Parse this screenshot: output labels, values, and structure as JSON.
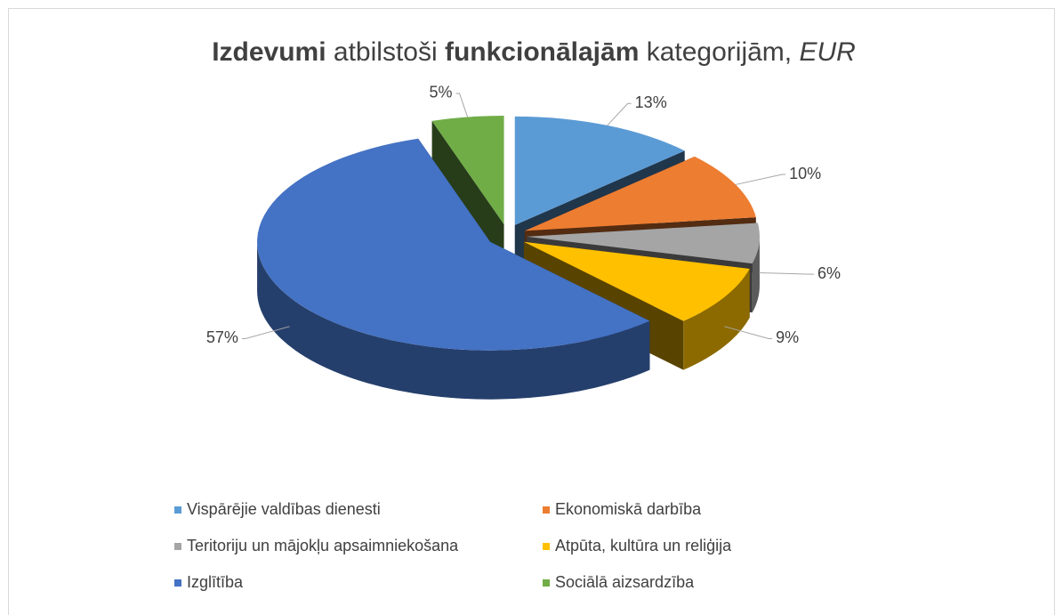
{
  "chart_data": {
    "type": "pie3d",
    "title": [
      {
        "text": "Izdevumi",
        "weight": "bold",
        "style": "normal"
      },
      {
        "text": " atbilstoši ",
        "weight": "normal",
        "style": "normal"
      },
      {
        "text": "funkcionālajām",
        "weight": "bold",
        "style": "normal"
      },
      {
        "text": " kategorijām, ",
        "weight": "normal",
        "style": "normal"
      },
      {
        "text": "EUR",
        "weight": "normal",
        "style": "italic"
      }
    ],
    "categories": [
      "Vispārējie valdības dienesti",
      "Ekonomiskā darbība",
      "Teritoriju un mājokļu apsaimniekošana",
      "Atpūta, kultūra un reliģija",
      "Izglītība",
      "Sociālā aizsardzība"
    ],
    "values": [
      13,
      10,
      6,
      9,
      57,
      5
    ],
    "value_labels": [
      "13%",
      "10%",
      "6%",
      "9%",
      "57%",
      "5%"
    ],
    "colors": [
      "#5b9bd5",
      "#ed7d31",
      "#a5a5a5",
      "#ffc000",
      "#4472c4",
      "#70ad47"
    ],
    "legend": "bottom"
  }
}
